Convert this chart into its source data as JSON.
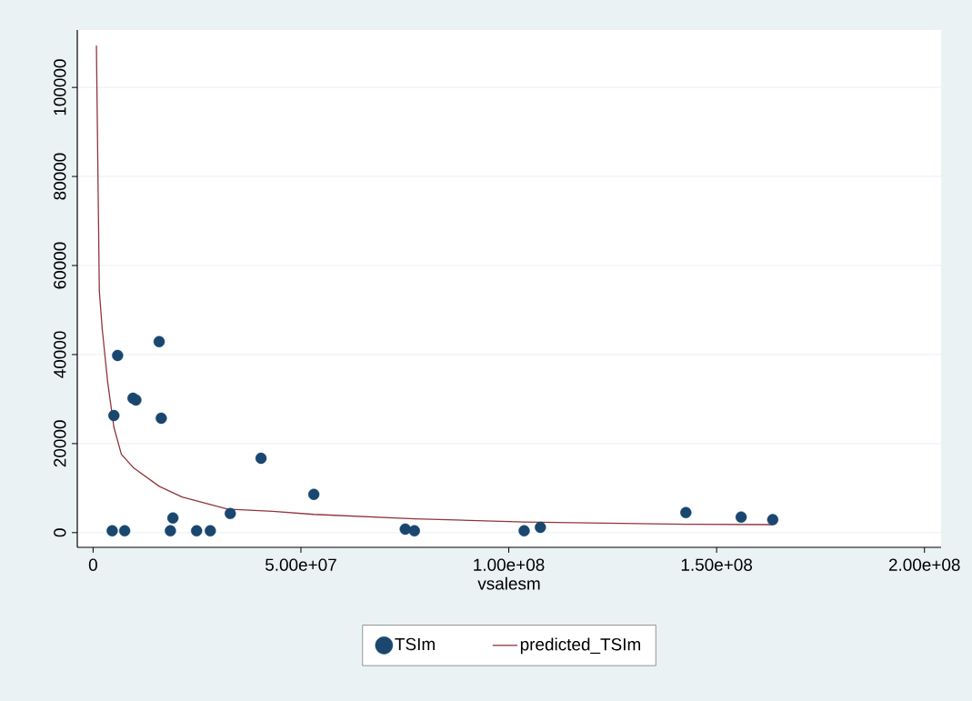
{
  "chart_data": {
    "type": "scatter",
    "xlabel": "vsalesm",
    "xlim": [
      -3800000,
      204000000
    ],
    "ylim": [
      -3300,
      112900
    ],
    "xticks": [
      0,
      {
        "value": 50000000,
        "label": "5.00e+07"
      },
      {
        "value": 100000000,
        "label": "1.00e+08"
      },
      {
        "value": 150000000,
        "label": "1.50e+08"
      },
      {
        "value": 200000000,
        "label": "2.00e+08"
      }
    ],
    "yticks": [
      0,
      20000,
      40000,
      60000,
      80000,
      100000
    ],
    "grid": "y",
    "legend": "bottom",
    "series": [
      {
        "name": "TSIm",
        "marker": "circle",
        "color": "#1a476f",
        "x": [
          4600000,
          7600000,
          5900000,
          5000000,
          9600000,
          10300000,
          15900000,
          16400000,
          18600000,
          19200000,
          24900000,
          28200000,
          33000000,
          40400000,
          53100000,
          75100000,
          77300000,
          103700000,
          107600000,
          142600000,
          155900000,
          163500000
        ],
        "values": [
          400,
          400,
          39800,
          26300,
          30200,
          29800,
          42900,
          25700,
          400,
          3300,
          400,
          400,
          4300,
          16700,
          8600,
          800,
          400,
          400,
          1200,
          4500,
          3500,
          2900
        ]
      },
      {
        "name": "predicted_TSIm",
        "type": "line",
        "marker": "none",
        "line_style": "solid",
        "color": "#90353b",
        "x": [
          800000,
          1500000,
          2200000,
          3500000,
          5000000,
          6800000,
          9800000,
          15900000,
          21400000,
          32300000,
          43200000,
          53100000,
          77300000,
          103700000,
          142600000,
          163500000
        ],
        "values": [
          109400,
          54300,
          45700,
          33900,
          23700,
          17600,
          14500,
          10400,
          8000,
          5300,
          4800,
          4100,
          3100,
          2400,
          1900,
          1800
        ]
      }
    ]
  }
}
